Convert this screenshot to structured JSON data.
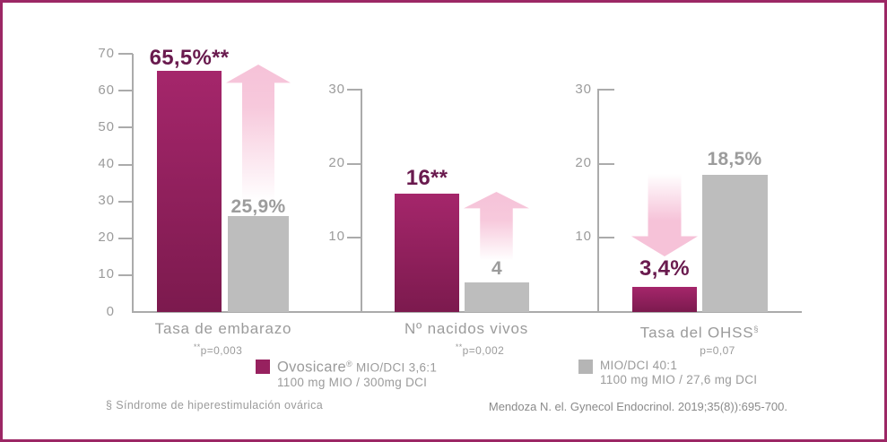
{
  "colors": {
    "frame": "#9C2765",
    "bar_primary_top": "#A5266B",
    "bar_primary_bottom": "#7C1A4E",
    "bar_secondary": "#BDBDBD",
    "value_text_magenta": "#691A4E",
    "value_text_gray": "#9C9C9C",
    "axis_gray": "#ABABAB",
    "label_gray": "#9B9B9B",
    "arrow_pink": "#F6C2D8"
  },
  "chart_data": [
    {
      "type": "bar",
      "title": "Tasa de embarazo",
      "title_suffix": "",
      "p_prefix": "**",
      "p_text": "p=0,003",
      "ylim": [
        0,
        70
      ],
      "yticks": [
        "70",
        "60",
        "50",
        "40",
        "30",
        "20",
        "10",
        "0"
      ],
      "grid": false,
      "arrow": "up",
      "series": [
        {
          "name": "Ovosicare® MIO/DCI 3,6:1",
          "value": 65.5,
          "label": "65,5%**"
        },
        {
          "name": "MIO/DCI 40:1",
          "value": 25.9,
          "label": "25,9%"
        }
      ]
    },
    {
      "type": "bar",
      "title": "Nº nacidos vivos",
      "title_suffix": "",
      "p_prefix": "**",
      "p_text": "p=0,002",
      "ylim": [
        0,
        30
      ],
      "yticks": [
        "30",
        "20",
        "10"
      ],
      "grid": false,
      "arrow": "up",
      "series": [
        {
          "name": "Ovosicare® MIO/DCI 3,6:1",
          "value": 16,
          "label": "16**"
        },
        {
          "name": "MIO/DCI 40:1",
          "value": 4,
          "label": "4"
        }
      ]
    },
    {
      "type": "bar",
      "title": "Tasa del OHSS",
      "title_suffix": "§",
      "p_prefix": "",
      "p_text": "p=0,07",
      "ylim": [
        0,
        30
      ],
      "yticks": [
        "30",
        "20",
        "10"
      ],
      "grid": false,
      "arrow": "down",
      "series": [
        {
          "name": "Ovosicare® MIO/DCI 3,6:1",
          "value": 3.4,
          "label": "3,4%"
        },
        {
          "name": "MIO/DCI 40:1",
          "value": 18.5,
          "label": "18,5%"
        }
      ]
    }
  ],
  "legend": {
    "items": [
      {
        "swatch_color": "#97215F",
        "brand": "Ovosicare",
        "reg": "®",
        "ratio": "MIO/DCI 3,6:1",
        "dose": "1100 mg MIO / 300mg DCI"
      },
      {
        "swatch_color": "#B5B5B5",
        "brand": "",
        "reg": "",
        "ratio": "MIO/DCI 40:1",
        "dose": "1100 mg MIO / 27,6 mg DCI"
      }
    ]
  },
  "footnote": "§ Síndrome de hiperestimulación ovárica",
  "reference": "Mendoza N. el. Gynecol Endocrinol. 2019;35(8)):695-700."
}
